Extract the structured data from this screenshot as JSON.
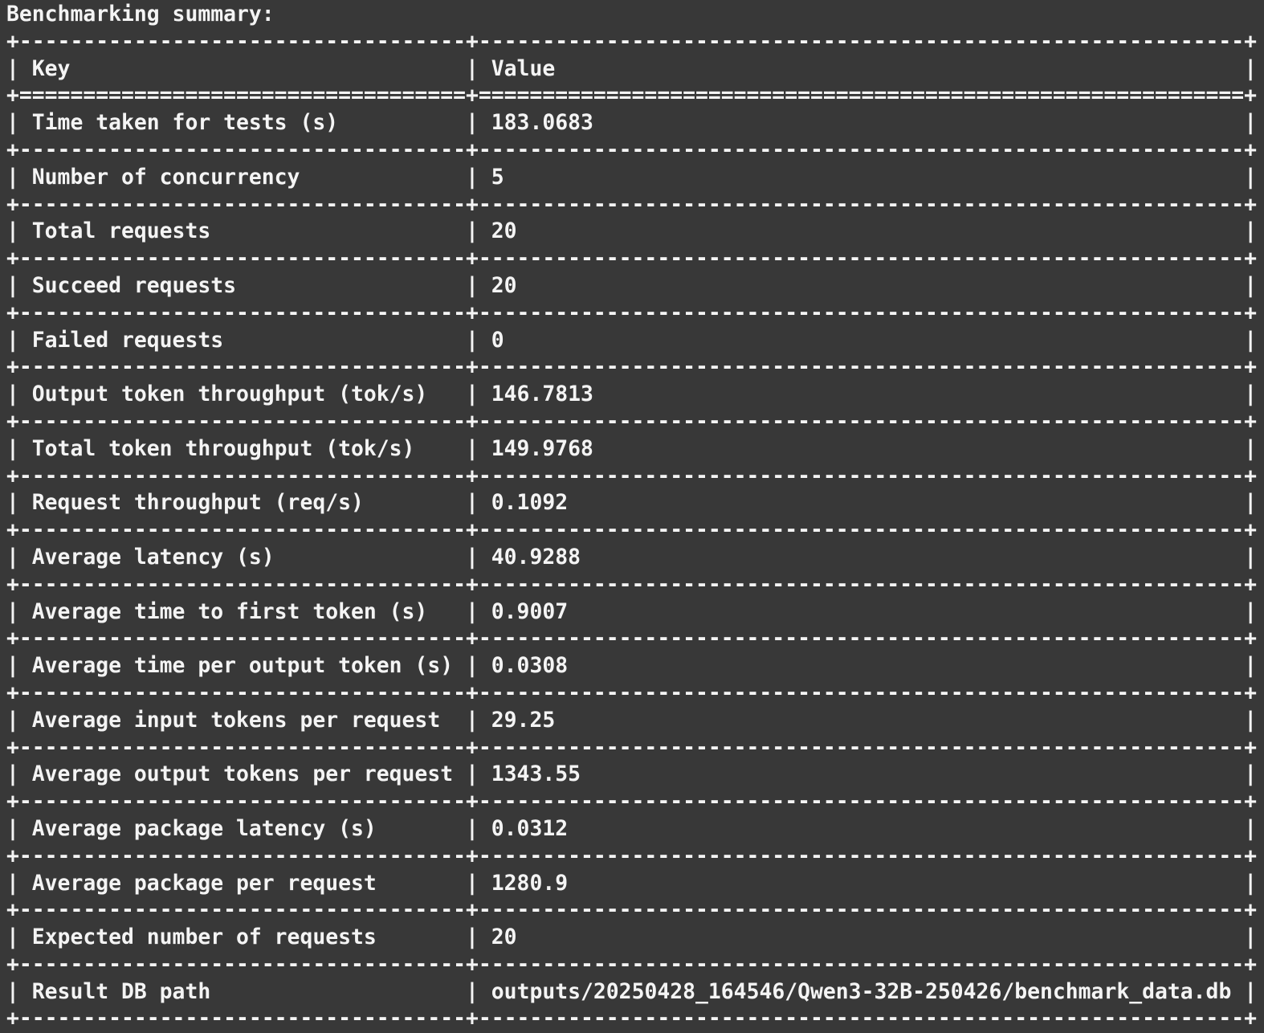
{
  "terminal": {
    "background_color": "#383838",
    "text_color": "#f4f4f4"
  },
  "title": "Benchmarking summary:",
  "table": {
    "header": {
      "key": "Key",
      "value": "Value"
    },
    "rows": [
      {
        "key": "Time taken for tests (s)",
        "value": "183.0683"
      },
      {
        "key": "Number of concurrency",
        "value": "5"
      },
      {
        "key": "Total requests",
        "value": "20"
      },
      {
        "key": "Succeed requests",
        "value": "20"
      },
      {
        "key": "Failed requests",
        "value": "0"
      },
      {
        "key": "Output token throughput (tok/s)",
        "value": "146.7813"
      },
      {
        "key": "Total token throughput (tok/s)",
        "value": "149.9768"
      },
      {
        "key": "Request throughput (req/s)",
        "value": "0.1092"
      },
      {
        "key": "Average latency (s)",
        "value": "40.9288"
      },
      {
        "key": "Average time to first token (s)",
        "value": "0.9007"
      },
      {
        "key": "Average time per output token (s)",
        "value": "0.0308"
      },
      {
        "key": "Average input tokens per request",
        "value": "29.25"
      },
      {
        "key": "Average output tokens per request",
        "value": "1343.55"
      },
      {
        "key": "Average package latency (s)",
        "value": "0.0312"
      },
      {
        "key": "Average package per request",
        "value": "1280.9"
      },
      {
        "key": "Expected number of requests",
        "value": "20"
      },
      {
        "key": "Result DB path",
        "value": "outputs/20250428_164546/Qwen3-32B-250426/benchmark_data.db"
      }
    ]
  }
}
